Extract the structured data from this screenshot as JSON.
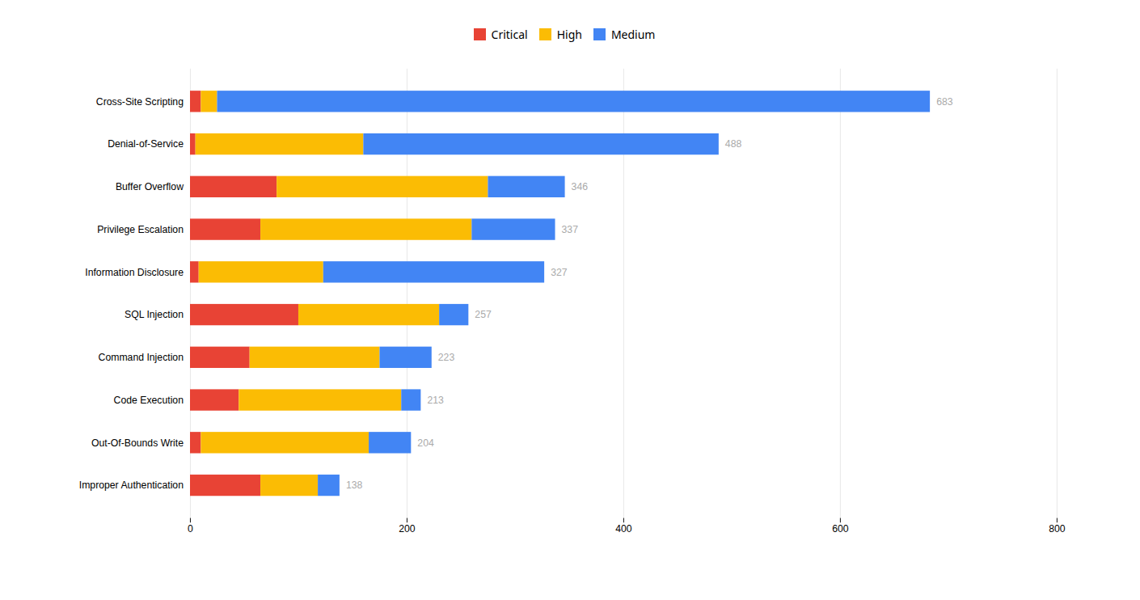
{
  "chart_data": {
    "type": "bar",
    "orientation": "horizontal",
    "stacked": true,
    "categories": [
      "Cross-Site Scripting",
      "Denial-of-Service",
      "Buffer Overflow",
      "Privilege Escalation",
      "Information Disclosure",
      "SQL Injection",
      "Command Injection",
      "Code Execution",
      "Out-Of-Bounds Write",
      "Improper Authentication"
    ],
    "series": [
      {
        "name": "Critical",
        "color": "#E84335",
        "values": [
          10,
          5,
          80,
          65,
          8,
          100,
          55,
          45,
          10,
          65
        ]
      },
      {
        "name": "High",
        "color": "#FBBC04",
        "values": [
          15,
          155,
          195,
          195,
          115,
          130,
          120,
          150,
          155,
          53
        ]
      },
      {
        "name": "Medium",
        "color": "#4285F4",
        "values": [
          658,
          328,
          71,
          77,
          204,
          27,
          48,
          18,
          39,
          20
        ]
      }
    ],
    "totals": {
      "values": [
        683,
        488,
        346,
        337,
        327,
        257,
        223,
        213,
        204,
        138
      ],
      "color": "#aaaaaa"
    },
    "xlim": [
      0,
      800
    ],
    "xticks": [
      0,
      200,
      400,
      600,
      800
    ],
    "grid": true,
    "legend": "top"
  }
}
